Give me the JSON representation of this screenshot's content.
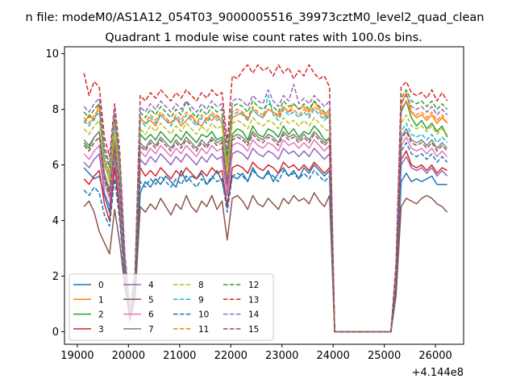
{
  "figure": {
    "suptitle": "n file: modeM0/AS1A12_054T03_9000005516_39973cztM0_level2_quad_clean"
  },
  "chart_data": {
    "type": "line",
    "title": "Quadrant 1 module wise count rates with 100.0s bins.",
    "xlabel": "",
    "ylabel": "",
    "x_offset_label": "+4.144e8",
    "xlim": [
      18750,
      26550
    ],
    "ylim": [
      -0.45,
      10.25
    ],
    "xticks": [
      19000,
      20000,
      21000,
      22000,
      23000,
      24000,
      25000,
      26000
    ],
    "yticks": [
      0,
      2,
      4,
      6,
      8,
      10
    ],
    "grid": false,
    "legend": {
      "position": "lower-left",
      "columns": 4
    },
    "x_start": 19130,
    "bin_step": 100,
    "gap_after_index": 48,
    "gap_resume_x": 25230,
    "series": [
      {
        "name": "0",
        "color": "#1f77b4",
        "dash": "solid",
        "base": 5.5,
        "profile": [
          5.9,
          5.7,
          5.5,
          5.6,
          4.9,
          4.3,
          6.3,
          4.2,
          2.0,
          0.5,
          1.5,
          5.0,
          5.4,
          5.2,
          5.5,
          5.3,
          5.6,
          5.4,
          5.2,
          5.8,
          5.4,
          5.6,
          5.5,
          5.7,
          5.3,
          5.5,
          5.8,
          5.4,
          4.6,
          5.6,
          5.5,
          5.7,
          5.4,
          5.9,
          5.6,
          5.5,
          5.8,
          5.4,
          5.7,
          5.9,
          5.6,
          5.8,
          5.5,
          5.9,
          5.7,
          6.0,
          5.8,
          5.6,
          5.8
        ],
        "tail": [
          1.5,
          5.4,
          5.7,
          5.4,
          5.5,
          5.4,
          5.5,
          5.6,
          5.3,
          5.3,
          5.3
        ]
      },
      {
        "name": "1",
        "color": "#ff7f0e",
        "dash": "solid",
        "base": 7.6,
        "profile": [
          7.5,
          7.8,
          7.6,
          8.2,
          6.1,
          5.4,
          7.0,
          5.8,
          2.5,
          0.7,
          2.0,
          7.7,
          7.5,
          7.6,
          7.4,
          7.8,
          7.6,
          7.5,
          7.7,
          7.4,
          7.6,
          7.8,
          7.5,
          7.4,
          7.7,
          7.6,
          7.8,
          7.5,
          5.9,
          7.7,
          7.8,
          7.9,
          7.6,
          8.0,
          7.8,
          7.7,
          8.0,
          7.9,
          7.8,
          8.1,
          7.9,
          8.2,
          8.0,
          8.1,
          7.9,
          8.3,
          8.0,
          7.8,
          8.0
        ],
        "tail": [
          2.2,
          8.2,
          8.6,
          7.9,
          7.7,
          7.8,
          7.6,
          7.8,
          7.5,
          7.7,
          7.5
        ]
      },
      {
        "name": "2",
        "color": "#2ca02c",
        "dash": "solid",
        "base": 7.0,
        "profile": [
          6.8,
          6.6,
          7.0,
          7.2,
          5.6,
          5.0,
          6.5,
          5.2,
          2.3,
          0.6,
          1.8,
          7.1,
          6.9,
          7.1,
          6.9,
          7.2,
          7.0,
          6.8,
          7.1,
          6.9,
          7.2,
          7.0,
          6.8,
          7.1,
          7.0,
          7.2,
          6.9,
          7.0,
          5.4,
          7.1,
          7.3,
          7.2,
          6.9,
          7.4,
          7.1,
          7.0,
          7.3,
          7.2,
          7.0,
          7.4,
          7.1,
          7.3,
          7.0,
          7.2,
          7.1,
          7.4,
          7.2,
          6.9,
          6.9
        ],
        "tail": [
          2.0,
          7.9,
          8.3,
          7.7,
          7.4,
          7.6,
          7.3,
          7.5,
          7.2,
          7.4,
          7.0
        ]
      },
      {
        "name": "3",
        "color": "#d62728",
        "dash": "solid",
        "base": 5.6,
        "profile": [
          5.5,
          5.3,
          5.6,
          5.8,
          4.6,
          4.0,
          5.9,
          4.3,
          2.0,
          0.5,
          1.5,
          5.9,
          5.6,
          5.8,
          5.6,
          5.9,
          5.7,
          5.5,
          5.8,
          5.6,
          5.9,
          5.7,
          5.5,
          5.8,
          5.6,
          5.9,
          5.7,
          5.8,
          4.5,
          5.9,
          6.0,
          5.9,
          5.7,
          6.1,
          5.9,
          5.8,
          6.0,
          5.9,
          5.7,
          6.1,
          5.9,
          6.0,
          5.8,
          6.0,
          5.8,
          6.1,
          5.9,
          5.7,
          5.9
        ],
        "tail": [
          1.7,
          6.2,
          6.5,
          6.0,
          5.9,
          6.0,
          5.8,
          6.0,
          5.7,
          5.9,
          5.8
        ]
      },
      {
        "name": "4",
        "color": "#9467bd",
        "dash": "solid",
        "base": 6.2,
        "profile": [
          6.1,
          5.9,
          6.2,
          6.4,
          5.0,
          4.5,
          6.3,
          4.6,
          2.1,
          0.6,
          1.6,
          6.2,
          6.0,
          6.3,
          6.1,
          6.4,
          6.2,
          6.0,
          6.3,
          6.1,
          6.4,
          6.2,
          6.0,
          6.3,
          6.1,
          6.4,
          6.2,
          6.3,
          4.9,
          6.4,
          6.5,
          6.4,
          6.2,
          6.6,
          6.4,
          6.3,
          6.5,
          6.4,
          6.2,
          6.6,
          6.4,
          6.5,
          6.3,
          6.5,
          6.3,
          6.6,
          6.4,
          6.2,
          6.4
        ],
        "tail": [
          1.8,
          6.0,
          6.3,
          5.9,
          5.8,
          5.9,
          5.7,
          5.9,
          5.6,
          5.8,
          5.6
        ]
      },
      {
        "name": "5",
        "color": "#8c564b",
        "dash": "solid",
        "base": 4.4,
        "profile": [
          4.5,
          4.7,
          4.3,
          3.6,
          3.2,
          2.8,
          4.4,
          3.2,
          1.6,
          0.4,
          1.2,
          4.5,
          4.3,
          4.6,
          4.4,
          4.8,
          4.5,
          4.2,
          4.6,
          4.4,
          4.9,
          4.5,
          4.3,
          4.7,
          4.5,
          4.9,
          4.4,
          4.7,
          3.3,
          4.8,
          4.9,
          4.7,
          4.4,
          4.9,
          4.6,
          4.5,
          4.8,
          4.6,
          4.4,
          4.8,
          4.6,
          4.9,
          4.7,
          4.8,
          4.6,
          5.0,
          4.7,
          4.5,
          4.9
        ],
        "tail": [
          1.3,
          4.5,
          4.8,
          4.7,
          4.6,
          4.8,
          4.9,
          4.8,
          4.6,
          4.5,
          4.3
        ]
      },
      {
        "name": "6",
        "color": "#e377c2",
        "dash": "solid",
        "base": 6.5,
        "profile": [
          6.4,
          6.2,
          6.5,
          6.7,
          5.3,
          4.8,
          6.6,
          4.9,
          2.2,
          0.6,
          1.7,
          6.5,
          6.3,
          6.6,
          6.4,
          6.7,
          6.5,
          6.3,
          6.6,
          6.4,
          6.7,
          6.5,
          6.3,
          6.6,
          6.4,
          6.7,
          6.5,
          6.6,
          5.1,
          6.7,
          6.8,
          6.7,
          6.5,
          6.9,
          6.7,
          6.6,
          6.8,
          6.7,
          6.5,
          6.9,
          6.7,
          6.8,
          6.6,
          6.8,
          6.6,
          6.9,
          6.7,
          6.5,
          6.7
        ],
        "tail": [
          1.9,
          6.7,
          7.0,
          6.6,
          6.5,
          6.6,
          6.4,
          6.6,
          6.3,
          6.5,
          6.3
        ]
      },
      {
        "name": "7",
        "color": "#7f7f7f",
        "dash": "solid",
        "base": 7.0,
        "profile": [
          6.9,
          6.7,
          7.0,
          7.2,
          5.7,
          5.1,
          6.8,
          5.3,
          2.3,
          0.6,
          1.8,
          6.8,
          6.6,
          6.9,
          6.7,
          7.0,
          6.8,
          6.6,
          6.9,
          6.7,
          7.0,
          6.8,
          6.6,
          6.9,
          6.7,
          7.0,
          6.8,
          6.9,
          5.4,
          7.0,
          7.1,
          7.0,
          6.8,
          7.2,
          7.0,
          6.9,
          7.1,
          7.0,
          6.8,
          7.2,
          7.0,
          7.1,
          6.9,
          7.1,
          6.9,
          7.2,
          7.0,
          6.8,
          7.0
        ],
        "tail": [
          2.0,
          7.0,
          7.3,
          6.9,
          6.8,
          6.9,
          6.7,
          6.9,
          6.6,
          6.8,
          6.6
        ]
      },
      {
        "name": "8",
        "color": "#bcbd22",
        "dash": "dashed",
        "base": 7.4,
        "profile": [
          7.3,
          7.1,
          7.4,
          7.6,
          6.0,
          5.4,
          7.2,
          5.6,
          2.4,
          0.7,
          1.9,
          7.3,
          7.1,
          7.4,
          7.2,
          7.5,
          7.3,
          7.1,
          7.4,
          7.2,
          7.5,
          7.3,
          7.1,
          7.4,
          7.2,
          7.5,
          7.3,
          7.4,
          5.7,
          7.5,
          7.6,
          7.5,
          7.3,
          7.7,
          7.5,
          7.4,
          7.6,
          7.5,
          7.3,
          7.7,
          7.5,
          7.6,
          7.4,
          7.6,
          7.4,
          7.7,
          7.5,
          7.3,
          7.2
        ],
        "tail": [
          2.1,
          7.5,
          7.8,
          7.4,
          7.3,
          7.4,
          7.2,
          7.4,
          7.1,
          7.3,
          7.1
        ]
      },
      {
        "name": "9",
        "color": "#17becf",
        "dash": "dashed",
        "base": 7.7,
        "profile": [
          7.6,
          7.4,
          7.7,
          7.9,
          6.2,
          5.6,
          7.5,
          5.8,
          2.5,
          0.7,
          2.0,
          7.6,
          7.4,
          7.7,
          7.5,
          7.8,
          7.6,
          7.4,
          7.7,
          7.5,
          7.8,
          7.6,
          7.4,
          7.7,
          7.5,
          7.8,
          7.6,
          7.7,
          6.0,
          7.8,
          7.9,
          7.8,
          7.6,
          8.0,
          7.8,
          7.7,
          8.5,
          7.8,
          7.6,
          8.0,
          7.8,
          7.9,
          7.7,
          7.9,
          7.7,
          8.0,
          7.8,
          7.6,
          7.8
        ],
        "tail": [
          2.2,
          7.2,
          7.5,
          7.1,
          7.0,
          7.1,
          6.9,
          7.1,
          6.8,
          7.0,
          6.8
        ]
      },
      {
        "name": "10",
        "color": "#1f77b4",
        "dash": "dashed",
        "base": 5.0,
        "profile": [
          5.1,
          4.9,
          5.2,
          5.0,
          4.2,
          3.8,
          5.5,
          4.0,
          1.8,
          0.5,
          1.4,
          5.4,
          5.2,
          5.5,
          5.3,
          5.6,
          5.4,
          5.2,
          5.5,
          5.3,
          5.6,
          5.4,
          5.2,
          5.5,
          5.3,
          5.6,
          5.4,
          5.5,
          4.3,
          5.6,
          5.7,
          5.6,
          5.4,
          5.8,
          5.6,
          5.5,
          5.7,
          5.6,
          5.4,
          5.8,
          5.6,
          5.7,
          5.5,
          5.7,
          5.5,
          5.8,
          5.6,
          5.4,
          5.6
        ],
        "tail": [
          1.5,
          6.5,
          6.8,
          6.4,
          6.3,
          6.4,
          6.2,
          6.4,
          6.1,
          6.3,
          6.1
        ]
      },
      {
        "name": "11",
        "color": "#ff7f0e",
        "dash": "dashed",
        "base": 7.8,
        "profile": [
          7.7,
          7.5,
          7.8,
          8.0,
          6.3,
          5.7,
          7.6,
          5.9,
          2.5,
          0.7,
          2.0,
          7.7,
          7.5,
          7.8,
          7.6,
          7.9,
          7.7,
          7.5,
          7.8,
          7.6,
          7.9,
          7.7,
          7.5,
          7.8,
          7.6,
          7.9,
          7.7,
          7.8,
          6.1,
          7.9,
          8.0,
          7.9,
          7.7,
          8.1,
          7.9,
          7.8,
          8.0,
          7.9,
          7.7,
          8.1,
          7.9,
          8.0,
          7.8,
          8.0,
          7.8,
          8.1,
          7.9,
          7.7,
          7.9
        ],
        "tail": [
          2.2,
          8.0,
          8.3,
          7.9,
          7.8,
          7.9,
          7.7,
          7.9,
          7.6,
          7.8,
          7.5
        ]
      },
      {
        "name": "12",
        "color": "#2ca02c",
        "dash": "dashed",
        "base": 8.0,
        "profile": [
          7.9,
          7.7,
          8.0,
          8.2,
          6.5,
          5.9,
          7.8,
          6.1,
          2.6,
          0.7,
          2.1,
          7.9,
          7.7,
          8.0,
          7.8,
          8.1,
          7.9,
          7.7,
          8.0,
          7.8,
          8.3,
          7.9,
          7.7,
          8.0,
          7.8,
          8.1,
          7.9,
          8.0,
          6.3,
          8.1,
          8.2,
          8.1,
          7.9,
          8.3,
          8.1,
          8.0,
          8.2,
          8.1,
          7.9,
          8.3,
          8.1,
          8.2,
          8.0,
          8.2,
          8.0,
          8.3,
          8.1,
          7.9,
          7.6
        ],
        "tail": [
          2.3,
          8.4,
          8.7,
          8.3,
          8.2,
          8.3,
          8.1,
          8.3,
          8.0,
          8.2,
          8.0
        ]
      },
      {
        "name": "13",
        "color": "#d62728",
        "dash": "dashed",
        "base": 8.6,
        "profile": [
          9.3,
          8.5,
          9.0,
          8.8,
          7.0,
          6.3,
          8.2,
          6.5,
          2.8,
          0.8,
          2.2,
          8.5,
          8.3,
          8.6,
          8.4,
          8.7,
          8.5,
          8.3,
          8.6,
          8.4,
          8.7,
          8.5,
          8.3,
          8.6,
          8.4,
          8.7,
          8.5,
          8.6,
          6.8,
          9.2,
          9.1,
          9.4,
          9.6,
          9.3,
          9.6,
          9.4,
          9.5,
          9.2,
          9.6,
          9.3,
          9.5,
          9.1,
          9.4,
          9.2,
          9.6,
          9.3,
          9.1,
          9.2,
          8.8
        ],
        "tail": [
          2.5,
          8.8,
          9.0,
          8.6,
          8.5,
          8.6,
          8.4,
          8.7,
          8.3,
          8.6,
          8.3
        ]
      },
      {
        "name": "14",
        "color": "#9467bd",
        "dash": "dashed",
        "base": 8.2,
        "profile": [
          8.1,
          7.9,
          8.2,
          8.4,
          6.7,
          6.0,
          8.0,
          6.2,
          2.7,
          0.8,
          2.1,
          8.1,
          7.9,
          8.2,
          8.0,
          8.3,
          8.1,
          7.9,
          8.2,
          8.0,
          8.3,
          8.1,
          7.9,
          8.2,
          8.0,
          8.3,
          8.1,
          8.2,
          6.5,
          8.3,
          8.4,
          8.3,
          8.1,
          8.5,
          8.3,
          8.2,
          8.7,
          8.3,
          8.1,
          8.5,
          8.3,
          8.9,
          8.2,
          8.4,
          8.2,
          8.5,
          8.3,
          8.1,
          8.3
        ],
        "tail": [
          2.3,
          8.2,
          8.5,
          8.1,
          8.0,
          8.1,
          7.9,
          8.1,
          7.8,
          8.0,
          7.8
        ]
      },
      {
        "name": "15",
        "color": "#8c564b",
        "dash": "dashed",
        "base": 6.8,
        "profile": [
          6.7,
          6.5,
          6.8,
          7.0,
          5.5,
          4.9,
          6.6,
          5.1,
          2.3,
          0.6,
          1.7,
          6.7,
          6.5,
          6.8,
          6.6,
          6.9,
          6.7,
          6.5,
          6.8,
          6.6,
          6.9,
          6.7,
          6.5,
          6.8,
          6.6,
          6.9,
          6.7,
          6.8,
          5.3,
          6.9,
          7.0,
          6.9,
          6.7,
          7.1,
          6.9,
          6.8,
          7.0,
          6.9,
          6.7,
          7.1,
          6.9,
          7.0,
          6.8,
          7.0,
          6.8,
          7.1,
          6.9,
          6.7,
          6.9
        ],
        "tail": [
          1.9,
          6.9,
          7.2,
          6.8,
          6.7,
          6.8,
          6.6,
          6.8,
          6.5,
          6.7,
          6.5
        ]
      }
    ]
  }
}
